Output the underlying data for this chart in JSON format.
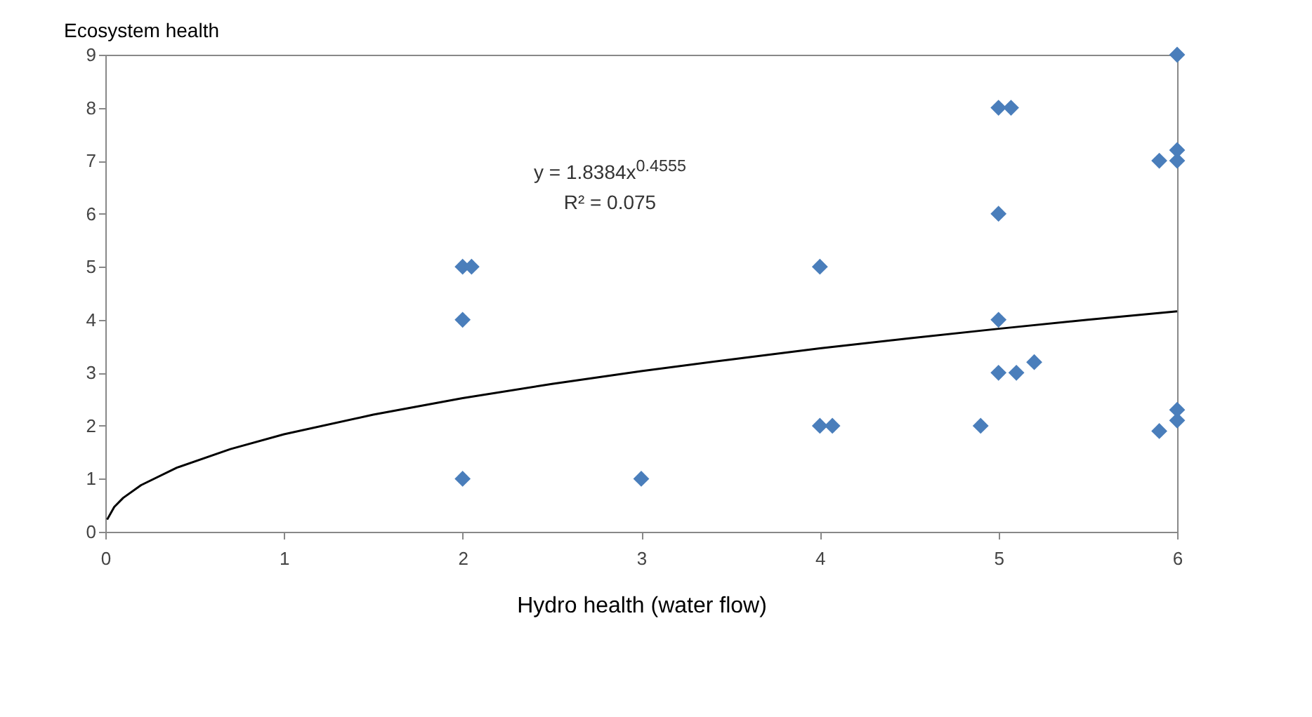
{
  "chart_data": {
    "type": "scatter",
    "ylabel": "Ecosystem health",
    "xlabel": "Hydro health (water flow)",
    "xlim": [
      0,
      6
    ],
    "xticks": [
      0,
      1,
      2,
      3,
      4,
      5,
      6
    ],
    "ylim": [
      0,
      9
    ],
    "yticks": [
      0,
      1,
      2,
      3,
      4,
      5,
      6,
      7,
      8,
      9
    ],
    "grid": false,
    "marker": "diamond",
    "annotations": [
      "y = 1.8384x$^{0.4555}$",
      "R² = 0.075"
    ],
    "series": [
      {
        "color": "#4a7ebb",
        "x": [
          2,
          2.05,
          2,
          2,
          3,
          4,
          4,
          4.07,
          4.9,
          5,
          5.07,
          5,
          5,
          5,
          5.1,
          5.2,
          5.9,
          5.9,
          6,
          6,
          6,
          6,
          6
        ],
        "values": [
          5,
          5,
          4,
          1,
          1,
          5,
          2,
          2,
          2,
          8,
          8,
          6,
          4,
          3,
          3,
          3.2,
          1.9,
          7,
          7.2,
          7,
          9,
          2.3,
          2.1
        ]
      },
      {
        "type": "line",
        "color": "#000000",
        "marker": "none",
        "line_style": "solid",
        "x": [
          0.01,
          0.05,
          0.1,
          0.2,
          0.4,
          0.7,
          1,
          1.5,
          2,
          2.5,
          3,
          3.5,
          4,
          4.5,
          5,
          5.5,
          6
        ],
        "values": [
          0.23,
          0.47,
          0.64,
          0.88,
          1.21,
          1.56,
          1.84,
          2.21,
          2.52,
          2.79,
          3.03,
          3.25,
          3.46,
          3.65,
          3.83,
          4,
          4.16
        ]
      }
    ]
  }
}
